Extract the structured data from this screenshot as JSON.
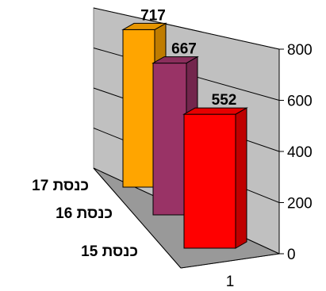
{
  "chart_data": {
    "type": "bar",
    "style": "3d-column",
    "x": [
      "1"
    ],
    "series": [
      {
        "name": "כנסת 17",
        "values": [
          717
        ],
        "color": "#FFA500"
      },
      {
        "name": "כנסת 16",
        "values": [
          667
        ],
        "color": "#993366"
      },
      {
        "name": "כנסת 15",
        "values": [
          552
        ],
        "color": "#FF0000"
      }
    ],
    "y_ticks": [
      "0",
      "200",
      "400",
      "600",
      "800"
    ],
    "ylim": [
      0,
      800
    ],
    "data_labels": [
      "717",
      "667",
      "552"
    ],
    "grid": true,
    "legend": "none"
  }
}
